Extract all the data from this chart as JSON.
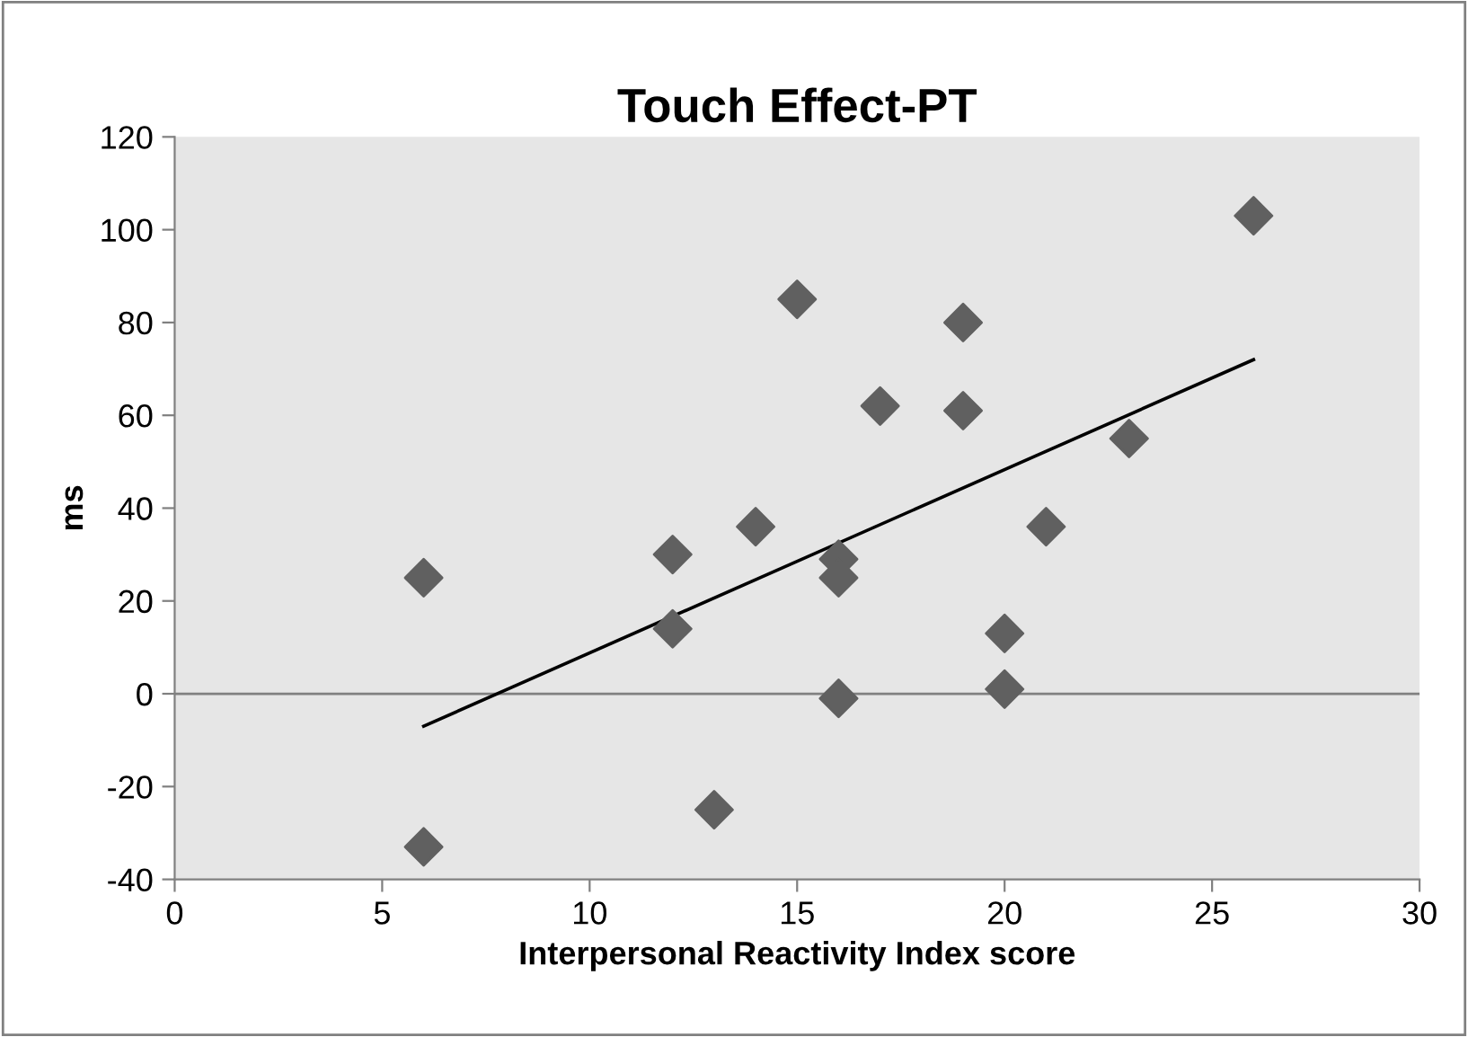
{
  "chart_data": {
    "type": "scatter",
    "title": "Touch Effect-PT",
    "xlabel": "Interpersonal Reactivity Index score",
    "ylabel": "ms",
    "series": [
      {
        "color": "#606060",
        "marker": "diamond",
        "x": [
          6,
          6,
          12,
          12,
          13,
          14,
          15,
          16,
          16,
          16,
          17,
          19,
          19,
          20,
          20,
          21,
          23,
          26
        ],
        "values": [
          25,
          -33,
          30,
          14,
          -25,
          36,
          85,
          29,
          25,
          -1,
          62,
          80,
          61,
          13,
          1,
          36,
          55,
          103
        ]
      },
      {
        "type": "line",
        "color": "#000000",
        "marker": "none",
        "x": [
          6,
          26
        ],
        "values": [
          -7,
          72
        ]
      }
    ],
    "xlim": [
      0,
      30
    ],
    "xticks": [
      0,
      5,
      10,
      15,
      20,
      25,
      30
    ],
    "ylim": [
      -40,
      120
    ],
    "yticks": [
      -40,
      -20,
      0,
      20,
      40,
      60,
      80,
      100,
      120
    ],
    "ref_lines": [
      {
        "axis": "y",
        "value": 0,
        "color": "#808080"
      }
    ],
    "grid": false,
    "legend": false
  }
}
